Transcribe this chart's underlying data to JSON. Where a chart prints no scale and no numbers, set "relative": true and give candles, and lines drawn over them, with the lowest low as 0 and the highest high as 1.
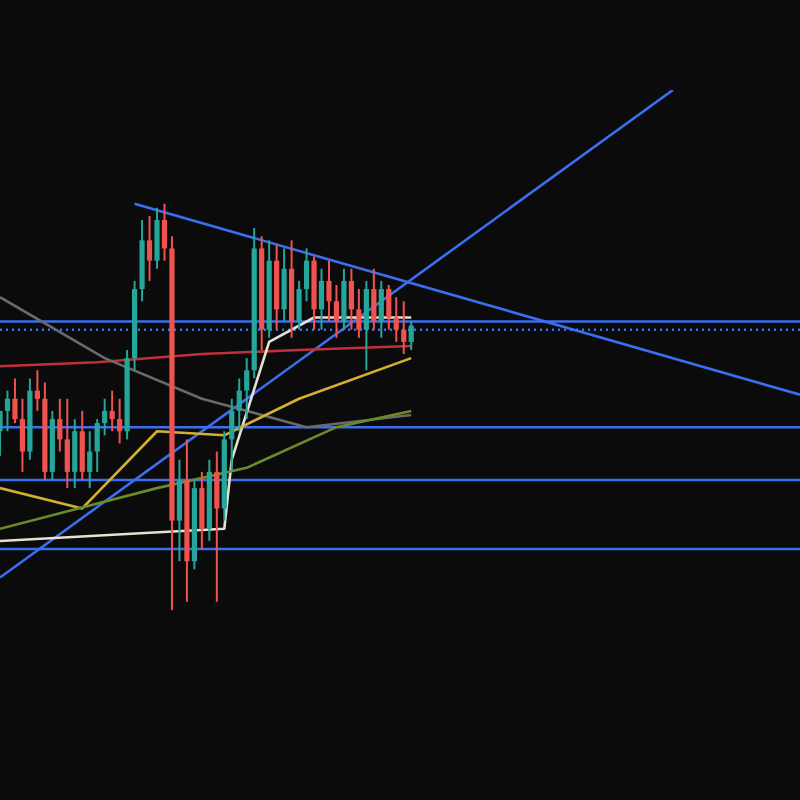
{
  "chart_data": {
    "type": "candlestick",
    "relative": true,
    "tick_labels": false,
    "marker": "none",
    "categories": [
      null,
      null,
      null,
      null,
      null,
      null,
      null,
      null,
      null,
      null,
      null,
      null,
      null,
      null,
      null,
      null,
      null,
      null,
      null,
      null,
      null,
      null,
      null,
      null,
      null,
      null,
      null,
      null,
      null,
      null,
      null,
      null,
      null,
      null,
      null,
      null,
      null,
      null,
      null,
      null,
      null,
      null,
      null,
      null,
      null,
      null,
      null,
      null,
      null,
      null,
      null,
      null,
      null,
      null,
      null,
      null,
      null,
      null,
      null,
      null,
      null,
      null,
      null,
      null,
      null,
      null,
      null,
      null,
      null,
      null,
      null,
      null,
      null,
      null,
      null,
      null,
      null,
      null,
      null,
      null,
      null,
      null,
      null,
      null,
      null,
      null,
      null,
      null,
      null,
      null,
      null,
      null,
      null,
      null,
      null,
      null,
      null,
      null,
      null,
      null,
      null,
      null,
      null,
      null,
      null,
      null,
      null,
      null
    ],
    "ohlc": [
      [
        0.44,
        0.49,
        0.38,
        0.49
      ],
      [
        0.49,
        0.54,
        0.44,
        0.52
      ],
      [
        0.52,
        0.57,
        0.46,
        0.47
      ],
      [
        0.47,
        0.52,
        0.34,
        0.39
      ],
      [
        0.39,
        0.57,
        0.37,
        0.54
      ],
      [
        0.54,
        0.59,
        0.49,
        0.52
      ],
      [
        0.52,
        0.56,
        0.32,
        0.34
      ],
      [
        0.34,
        0.49,
        0.32,
        0.47
      ],
      [
        0.47,
        0.52,
        0.39,
        0.42
      ],
      [
        0.42,
        0.52,
        0.3,
        0.34
      ],
      [
        0.34,
        0.47,
        0.3,
        0.44
      ],
      [
        0.44,
        0.49,
        0.32,
        0.34
      ],
      [
        0.34,
        0.44,
        0.3,
        0.39
      ],
      [
        0.39,
        0.47,
        0.34,
        0.46
      ],
      [
        0.46,
        0.52,
        0.43,
        0.49
      ],
      [
        0.49,
        0.54,
        0.44,
        0.47
      ],
      [
        0.47,
        0.52,
        0.41,
        0.44
      ],
      [
        0.44,
        0.64,
        0.42,
        0.62
      ],
      [
        0.62,
        0.81,
        0.59,
        0.79
      ],
      [
        0.79,
        0.96,
        0.76,
        0.91
      ],
      [
        0.91,
        0.97,
        0.81,
        0.86
      ],
      [
        0.86,
        0.99,
        0.84,
        0.96
      ],
      [
        0.96,
        1.0,
        0.86,
        0.89
      ],
      [
        0.89,
        0.92,
        0,
        0.22
      ],
      [
        0.22,
        0.37,
        0.12,
        0.32
      ],
      [
        0.32,
        0.42,
        0.02,
        0.12
      ],
      [
        0.12,
        0.32,
        0.1,
        0.3
      ],
      [
        0.3,
        0.34,
        0.15,
        0.2
      ],
      [
        0.2,
        0.37,
        0.17,
        0.34
      ],
      [
        0.34,
        0.39,
        0.02,
        0.25
      ],
      [
        0.25,
        0.44,
        0.22,
        0.42
      ],
      [
        0.42,
        0.52,
        0.34,
        0.49
      ],
      [
        0.49,
        0.57,
        0.44,
        0.54
      ],
      [
        0.54,
        0.62,
        0.47,
        0.59
      ],
      [
        0.59,
        0.94,
        0.57,
        0.89
      ],
      [
        0.89,
        0.92,
        0.64,
        0.69
      ],
      [
        0.69,
        0.91,
        0.67,
        0.86
      ],
      [
        0.86,
        0.9,
        0.69,
        0.74
      ],
      [
        0.74,
        0.89,
        0.71,
        0.84
      ],
      [
        0.84,
        0.91,
        0.67,
        0.71
      ],
      [
        0.71,
        0.81,
        0.69,
        0.79
      ],
      [
        0.79,
        0.89,
        0.76,
        0.86
      ],
      [
        0.86,
        0.87,
        0.69,
        0.74
      ],
      [
        0.74,
        0.84,
        0.69,
        0.81
      ],
      [
        0.81,
        0.86,
        0.71,
        0.76
      ],
      [
        0.76,
        0.8,
        0.67,
        0.71
      ],
      [
        0.71,
        0.84,
        0.69,
        0.81
      ],
      [
        0.81,
        0.84,
        0.69,
        0.74
      ],
      [
        0.74,
        0.79,
        0.67,
        0.69
      ],
      [
        0.69,
        0.81,
        0.59,
        0.79
      ],
      [
        0.79,
        0.84,
        0.69,
        0.71
      ],
      [
        0.71,
        0.81,
        0.67,
        0.79
      ],
      [
        0.79,
        0.8,
        0.69,
        0.72
      ],
      [
        0.72,
        0.77,
        0.66,
        0.69
      ],
      [
        0.69,
        0.76,
        0.63,
        0.66
      ],
      [
        0.66,
        0.71,
        0.64,
        0.7
      ],
      null,
      null,
      null,
      null,
      null,
      null,
      null,
      null,
      null,
      null,
      null,
      null,
      null,
      null,
      null,
      null,
      null,
      null,
      null,
      null,
      null,
      null,
      null,
      null,
      null,
      null,
      null,
      null,
      null,
      null,
      null,
      null,
      null,
      null,
      null,
      null,
      null,
      null,
      null,
      null,
      null,
      null,
      null,
      null,
      null,
      null,
      null,
      null,
      null,
      null,
      null,
      null
    ],
    "series": [
      {
        "type": "line",
        "color": "#3a6ff0",
        "values": [
          0.08,
          null,
          null,
          null,
          null,
          null,
          null,
          null,
          null,
          null,
          null,
          null,
          null,
          null,
          null,
          null,
          null,
          null,
          null,
          null,
          null,
          null,
          null,
          null,
          null,
          null,
          null,
          null,
          null,
          null,
          null,
          null,
          null,
          null,
          null,
          null,
          null,
          null,
          null,
          null,
          null,
          null,
          null,
          null,
          null,
          null,
          null,
          null,
          null,
          null,
          null,
          null,
          null,
          null,
          null,
          null,
          null,
          null,
          null,
          null,
          null,
          null,
          null,
          null,
          null,
          null,
          null,
          null,
          null,
          null,
          null,
          null,
          null,
          null,
          null,
          null,
          null,
          null,
          null,
          null,
          null,
          null,
          null,
          null,
          null,
          null,
          null,
          null,
          null,
          null,
          1.28,
          null,
          null,
          null,
          null,
          null,
          null,
          null,
          null,
          null,
          null,
          null,
          null,
          null,
          null,
          null,
          null,
          null
        ]
      },
      {
        "type": "line",
        "color": "#3a6ff0",
        "values": [
          null,
          null,
          null,
          null,
          null,
          null,
          null,
          null,
          null,
          null,
          null,
          null,
          null,
          null,
          null,
          null,
          null,
          null,
          1.0,
          null,
          null,
          null,
          null,
          null,
          null,
          null,
          null,
          null,
          null,
          null,
          null,
          null,
          null,
          null,
          null,
          null,
          null,
          null,
          null,
          null,
          null,
          null,
          null,
          null,
          null,
          null,
          null,
          null,
          null,
          null,
          null,
          null,
          null,
          null,
          null,
          null,
          null,
          null,
          null,
          null,
          null,
          null,
          null,
          null,
          null,
          null,
          null,
          null,
          null,
          null,
          null,
          null,
          null,
          null,
          null,
          null,
          null,
          null,
          null,
          null,
          null,
          null,
          null,
          null,
          null,
          null,
          null,
          null,
          null,
          null,
          null,
          null,
          null,
          null,
          null,
          null,
          null,
          null,
          null,
          null,
          null,
          null,
          null,
          null,
          null,
          null,
          null,
          0.53
        ]
      },
      {
        "type": "line",
        "color": "#c0303a",
        "values": [
          0.6,
          null,
          null,
          null,
          null,
          null,
          null,
          null,
          null,
          null,
          null,
          null,
          null,
          0.61,
          null,
          null,
          null,
          null,
          null,
          null,
          null,
          null,
          null,
          null,
          null,
          null,
          null,
          0.63,
          null,
          null,
          null,
          null,
          null,
          null,
          null,
          null,
          null,
          null,
          null,
          null,
          0.64,
          null,
          null,
          null,
          null,
          null,
          null,
          null,
          null,
          null,
          null,
          null,
          null,
          null,
          null,
          0.65,
          null,
          null,
          null,
          null,
          null,
          null,
          null,
          null,
          null,
          null,
          null,
          null,
          null,
          null,
          null,
          null,
          null,
          null,
          null,
          null,
          null,
          null,
          null,
          null,
          null,
          null,
          null,
          null,
          null,
          null,
          null,
          null,
          null,
          null,
          null,
          null,
          null,
          null,
          null,
          null,
          null,
          null,
          null,
          null,
          null,
          null,
          null,
          null,
          null,
          null,
          null,
          null
        ]
      },
      {
        "type": "line",
        "color": "#6a6a6a",
        "values": [
          0.77,
          null,
          null,
          null,
          null,
          null,
          null,
          null,
          null,
          null,
          null,
          null,
          null,
          null,
          0.62,
          null,
          null,
          null,
          null,
          null,
          null,
          null,
          null,
          null,
          null,
          null,
          null,
          0.52,
          null,
          null,
          null,
          null,
          null,
          null,
          null,
          null,
          null,
          null,
          null,
          null,
          null,
          0.45,
          null,
          null,
          null,
          null,
          null,
          null,
          null,
          null,
          null,
          null,
          null,
          null,
          null,
          0.48,
          null,
          null,
          null,
          null,
          null,
          null,
          null,
          null,
          null,
          null,
          null,
          null,
          null,
          null,
          null,
          null,
          null,
          null,
          null,
          null,
          null,
          null,
          null,
          null,
          null,
          null,
          null,
          null,
          null,
          null,
          null,
          null,
          null,
          null,
          null,
          null,
          null,
          null,
          null,
          null,
          null,
          null,
          null,
          null,
          null,
          null,
          null,
          null,
          null,
          null,
          null,
          null
        ]
      },
      {
        "type": "line",
        "color": "#e8e0d0",
        "values": [
          0.17,
          null,
          null,
          null,
          null,
          null,
          null,
          null,
          null,
          null,
          null,
          null,
          null,
          null,
          null,
          null,
          null,
          null,
          null,
          null,
          0.19,
          null,
          null,
          null,
          null,
          null,
          null,
          null,
          null,
          null,
          0.2,
          0.37,
          null,
          null,
          null,
          null,
          0.66,
          null,
          null,
          null,
          null,
          null,
          0.72,
          null,
          null,
          null,
          null,
          null,
          null,
          null,
          null,
          null,
          null,
          null,
          null,
          0.72,
          null,
          null,
          null,
          null,
          null,
          null,
          null,
          null,
          null,
          null,
          null,
          null,
          null,
          null,
          null,
          null,
          null,
          null,
          null,
          null,
          null,
          null,
          null,
          null,
          null,
          null,
          null,
          null,
          null,
          null,
          null,
          null,
          null,
          null,
          null,
          null,
          null,
          null,
          null,
          null,
          null,
          null,
          null,
          null,
          null,
          null,
          null,
          null,
          null,
          null,
          null,
          null
        ]
      },
      {
        "type": "line",
        "color": "#d4b030",
        "values": [
          0.3,
          null,
          null,
          null,
          null,
          null,
          null,
          null,
          null,
          null,
          null,
          0.25,
          null,
          null,
          null,
          null,
          null,
          null,
          null,
          null,
          null,
          0.44,
          null,
          null,
          null,
          null,
          null,
          null,
          null,
          null,
          0.43,
          null,
          null,
          null,
          null,
          null,
          null,
          null,
          null,
          null,
          0.52,
          null,
          null,
          null,
          null,
          null,
          null,
          null,
          null,
          null,
          null,
          null,
          null,
          null,
          null,
          0.62,
          null,
          null,
          null,
          null,
          null,
          null,
          null,
          null,
          null,
          null,
          null,
          null,
          null,
          null,
          null,
          null,
          null,
          null,
          null,
          null,
          null,
          null,
          null,
          null,
          null,
          null,
          null,
          null,
          null,
          null,
          null,
          null,
          null,
          null,
          null,
          null,
          null,
          null,
          null,
          null,
          null,
          null,
          null,
          null,
          null,
          null,
          null,
          null,
          null,
          null,
          null,
          null
        ]
      },
      {
        "type": "line",
        "color": "#6b8a2a",
        "values": [
          0.2,
          null,
          null,
          null,
          null,
          null,
          null,
          null,
          null,
          null,
          null,
          null,
          null,
          null,
          null,
          null,
          null,
          null,
          null,
          null,
          null,
          0.3,
          null,
          null,
          null,
          null,
          null,
          null,
          null,
          null,
          null,
          null,
          null,
          0.35,
          null,
          null,
          null,
          null,
          null,
          null,
          null,
          null,
          null,
          null,
          null,
          0.45,
          null,
          null,
          null,
          null,
          null,
          null,
          null,
          null,
          null,
          0.49,
          null,
          null,
          null,
          null,
          null,
          null,
          null,
          null,
          null,
          null,
          null,
          null,
          null,
          null,
          null,
          null,
          null,
          null,
          null,
          null,
          null,
          null,
          null,
          null,
          null,
          null,
          null,
          null,
          null,
          null,
          null,
          null,
          null,
          null,
          null,
          null,
          null,
          null,
          null,
          null,
          null,
          null,
          null,
          null,
          null,
          null,
          null,
          null,
          null,
          null,
          null,
          null
        ]
      }
    ],
    "ref_lines": [
      {
        "axis": "y",
        "value": 0.71,
        "color": "#3a6ff0",
        "line_style": "solid"
      },
      {
        "axis": "y",
        "value": 0.69,
        "color": "#3a6ff0",
        "line_style": "dotted"
      },
      {
        "axis": "y",
        "value": 0.45,
        "color": "#3a6ff0",
        "line_style": "solid"
      },
      {
        "axis": "y",
        "value": 0.32,
        "color": "#3a6ff0",
        "line_style": "solid"
      },
      {
        "axis": "y",
        "value": 0.15,
        "color": "#3a6ff0",
        "line_style": "solid"
      }
    ]
  }
}
